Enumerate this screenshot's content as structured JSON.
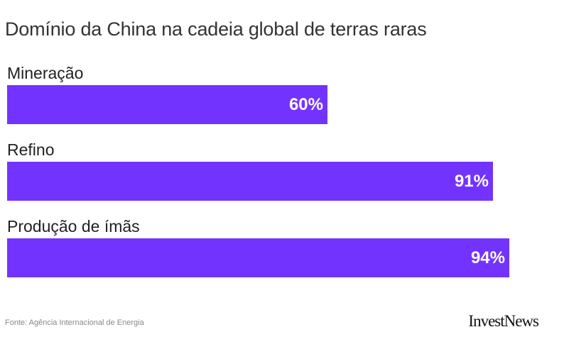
{
  "chart_data": {
    "type": "bar",
    "orientation": "horizontal",
    "title": "Domínio da China na cadeia global de terras raras",
    "categories": [
      "Mineração",
      "Refino",
      "Produção de ímãs"
    ],
    "values": [
      60,
      91,
      94
    ],
    "value_labels": [
      "60%",
      "91%",
      "94%"
    ],
    "xlim": [
      0,
      100
    ],
    "grid": false,
    "legend": "none",
    "bar_color": "#7333ff",
    "value_label_color": "#ffffff"
  },
  "footer": {
    "source": "Fonte: Agência Internacional de Energia",
    "logo": "InvestNews"
  }
}
